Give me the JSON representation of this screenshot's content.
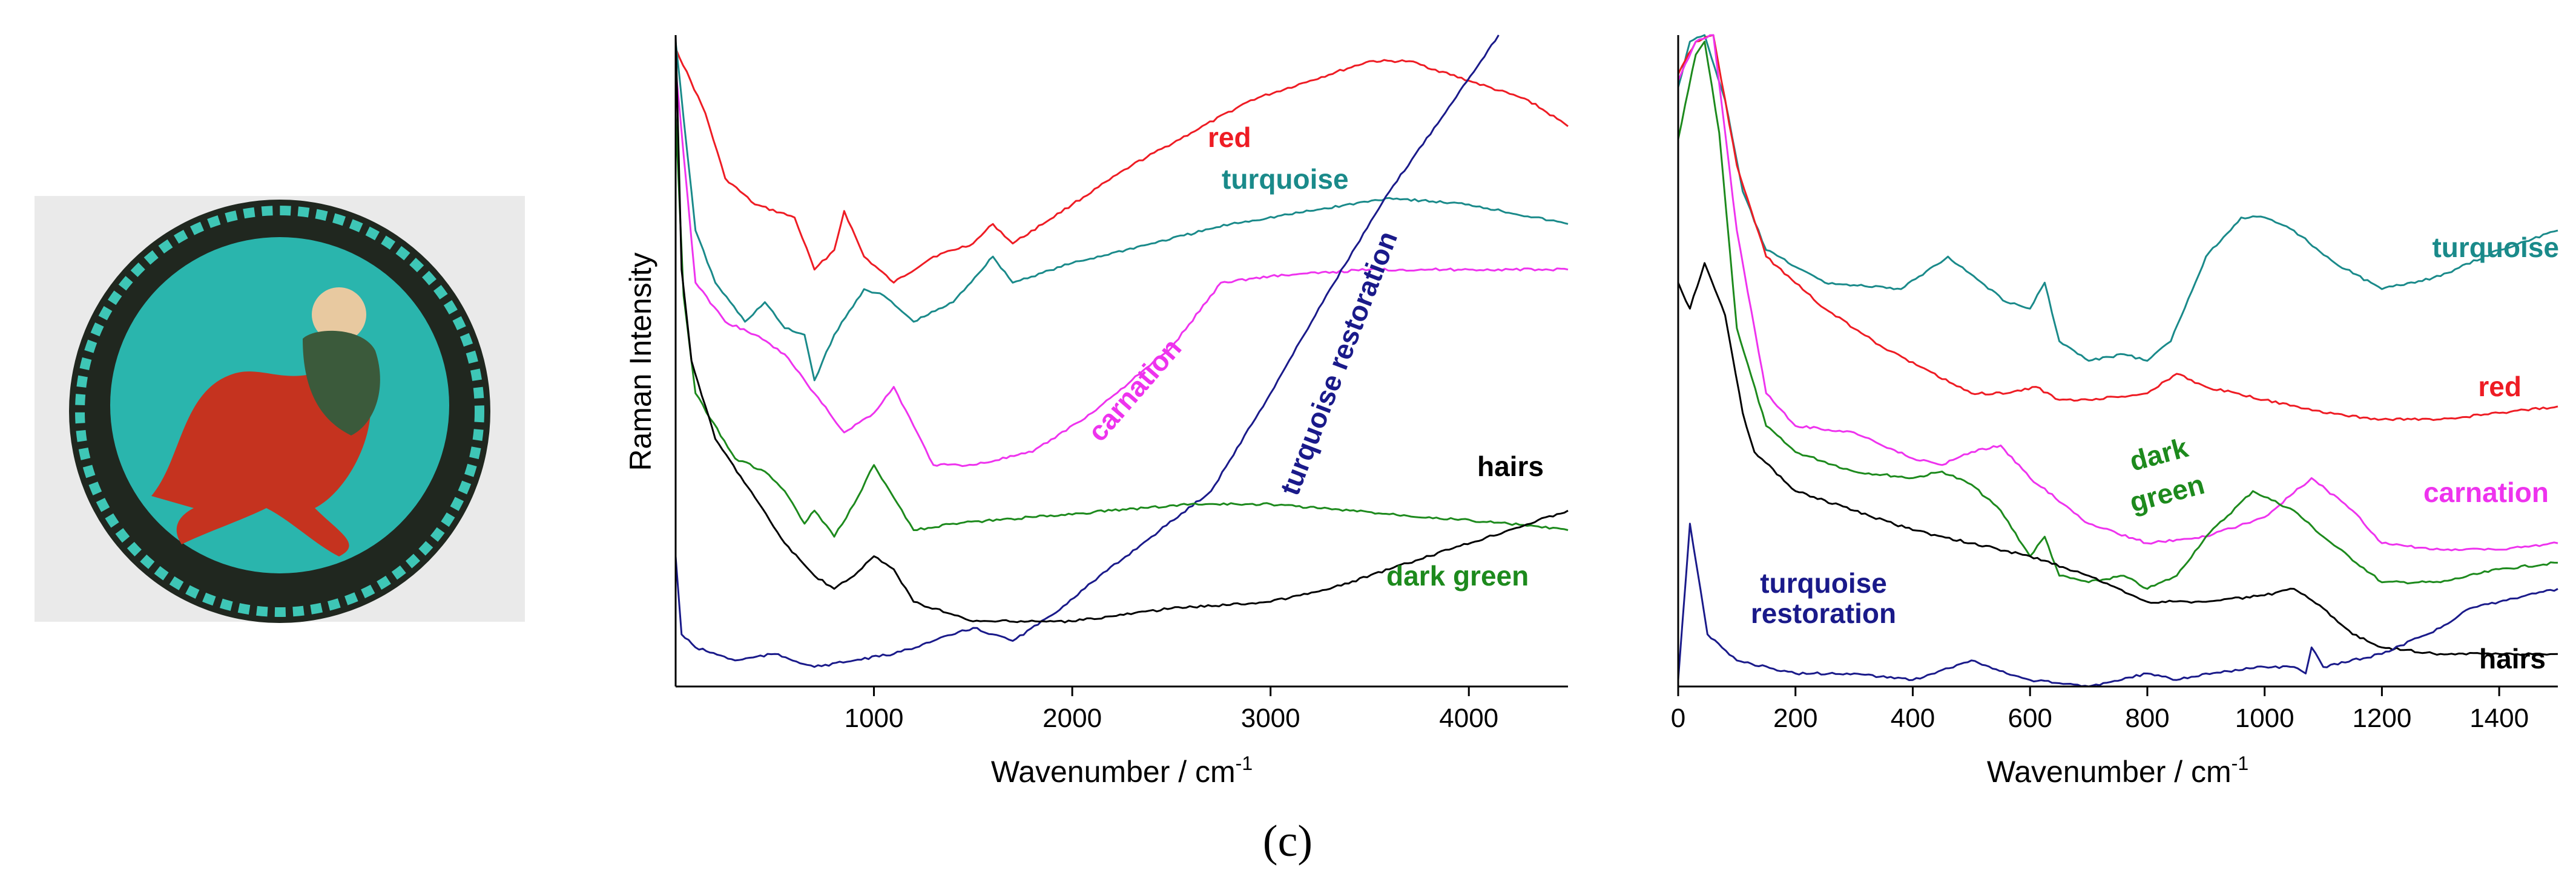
{
  "panel_letter": "(c)",
  "photo": {
    "description_icon": "bowl-photo"
  },
  "chart_data": [
    {
      "type": "line",
      "title": "",
      "xlabel": "Wavenumber / cm-1",
      "xlabel_main": "Wavenumber / cm",
      "xlabel_sup": "-1",
      "ylabel": "Raman Intensity",
      "xlim": [
        0,
        4500
      ],
      "ylim": [
        0,
        100
      ],
      "xticks": [
        1000,
        2000,
        3000,
        4000
      ],
      "xtick_labels": [
        "1000",
        "2000",
        "3000",
        "4000"
      ],
      "series": [
        {
          "name": "red",
          "color": "#ee1c24",
          "x": [
            0,
            150,
            250,
            400,
            600,
            700,
            800,
            850,
            950,
            1100,
            1300,
            1500,
            1600,
            1700,
            2000,
            2300,
            2600,
            2900,
            3200,
            3500,
            3700,
            4000,
            4300,
            4500
          ],
          "y": [
            98,
            88,
            78,
            74,
            72,
            64,
            67,
            73,
            66,
            62,
            66,
            68,
            71,
            68,
            74,
            80,
            85,
            90,
            93,
            96,
            96,
            93,
            90,
            86
          ]
        },
        {
          "name": "turquoise",
          "color": "#1a8a8a",
          "x": [
            0,
            100,
            200,
            350,
            450,
            550,
            650,
            700,
            800,
            950,
            1050,
            1200,
            1400,
            1600,
            1700,
            2000,
            2400,
            2800,
            3200,
            3600,
            4000,
            4500
          ],
          "y": [
            99,
            70,
            62,
            56,
            59,
            55,
            54,
            47,
            54,
            61,
            60,
            56,
            59,
            66,
            62,
            65,
            68,
            71,
            73,
            75,
            74,
            71
          ]
        },
        {
          "name": "carnation",
          "color": "#ee33ee",
          "x": [
            0,
            100,
            250,
            400,
            550,
            700,
            850,
            1000,
            1100,
            1200,
            1300,
            1500,
            1800,
            2100,
            2500,
            2750,
            3000,
            3500,
            4000,
            4500
          ],
          "y": [
            95,
            62,
            56,
            54,
            51,
            45,
            39,
            42,
            46,
            40,
            34,
            34,
            36,
            42,
            52,
            62,
            63,
            64,
            64,
            64
          ]
        },
        {
          "name": "turquoise restoration",
          "color": "#1a1a8a",
          "x": [
            0,
            30,
            100,
            300,
            500,
            700,
            900,
            1100,
            1300,
            1500,
            1600,
            1700,
            1900,
            2100,
            2400,
            2700,
            3000,
            3300,
            3600,
            3900,
            4150
          ],
          "y": [
            20,
            8,
            6,
            4,
            5,
            3,
            4,
            5,
            7,
            9,
            8,
            7,
            11,
            16,
            23,
            30,
            45,
            61,
            76,
            89,
            100
          ]
        },
        {
          "name": "dark green",
          "color": "#1d8a1d",
          "x": [
            0,
            40,
            100,
            300,
            450,
            550,
            650,
            700,
            800,
            900,
            1000,
            1100,
            1200,
            1400,
            1800,
            2200,
            2600,
            3000,
            3400,
            3800,
            4200,
            4500
          ],
          "y": [
            88,
            60,
            45,
            35,
            33,
            30,
            25,
            27,
            23,
            28,
            34,
            29,
            24,
            25,
            26,
            27,
            28,
            28,
            27,
            26,
            25,
            24
          ]
        },
        {
          "name": "hairs",
          "color": "#000000",
          "x": [
            0,
            30,
            80,
            200,
            400,
            550,
            700,
            800,
            900,
            1000,
            1100,
            1200,
            1500,
            2000,
            2500,
            3000,
            3300,
            3600,
            3900,
            4200,
            4500
          ],
          "y": [
            100,
            64,
            50,
            38,
            29,
            22,
            17,
            15,
            17,
            20,
            18,
            13,
            10,
            10,
            12,
            13,
            15,
            18,
            21,
            24,
            27
          ]
        }
      ]
    },
    {
      "type": "line",
      "title": "",
      "xlabel": "Wavenumber / cm-1",
      "xlabel_main": "Wavenumber / cm",
      "xlabel_sup": "-1",
      "ylabel": "",
      "xlim": [
        0,
        1500
      ],
      "ylim": [
        0,
        100
      ],
      "xticks": [
        0,
        200,
        400,
        600,
        800,
        1000,
        1200,
        1400
      ],
      "xtick_labels": [
        "0",
        "200",
        "400",
        "600",
        "800",
        "1000",
        "1200",
        "1400"
      ],
      "series": [
        {
          "name": "turquoise",
          "color": "#1a8a8a",
          "x": [
            0,
            20,
            45,
            80,
            110,
            150,
            250,
            380,
            460,
            560,
            600,
            625,
            650,
            700,
            760,
            800,
            840,
            900,
            960,
            1000,
            1050,
            1120,
            1200,
            1300,
            1400,
            1500
          ],
          "y": [
            92,
            99,
            100,
            90,
            76,
            67,
            62,
            61,
            66,
            59,
            58,
            62,
            53,
            50,
            51,
            50,
            53,
            66,
            72,
            72,
            70,
            65,
            61,
            63,
            67,
            70
          ]
        },
        {
          "name": "red",
          "color": "#ee1c24",
          "x": [
            0,
            30,
            60,
            100,
            150,
            250,
            350,
            500,
            560,
            610,
            650,
            700,
            800,
            850,
            900,
            1000,
            1100,
            1200,
            1300,
            1400,
            1500
          ],
          "y": [
            94,
            99,
            100,
            80,
            66,
            58,
            52,
            45,
            45,
            46,
            44,
            44,
            45,
            48,
            46,
            44,
            42,
            41,
            41,
            42,
            43
          ]
        },
        {
          "name": "carnation",
          "color": "#ee33ee",
          "x": [
            0,
            30,
            60,
            100,
            150,
            200,
            300,
            400,
            450,
            500,
            550,
            600,
            700,
            800,
            900,
            1000,
            1080,
            1150,
            1200,
            1300,
            1400,
            1500
          ],
          "y": [
            93,
            99,
            100,
            70,
            45,
            40,
            39,
            35,
            34,
            36,
            37,
            32,
            25,
            22,
            23,
            26,
            32,
            27,
            22,
            21,
            21,
            22
          ]
        },
        {
          "name": "dark green",
          "color": "#1d8a1d",
          "x": [
            0,
            30,
            45,
            70,
            100,
            150,
            200,
            300,
            400,
            450,
            500,
            550,
            600,
            625,
            650,
            700,
            760,
            800,
            850,
            900,
            980,
            1050,
            1100,
            1200,
            1300,
            1400,
            1500
          ],
          "y": [
            84,
            97,
            99,
            85,
            55,
            40,
            36,
            33,
            32,
            33,
            31,
            27,
            20,
            23,
            17,
            16,
            17,
            15,
            17,
            23,
            30,
            27,
            23,
            16,
            16,
            18,
            19
          ]
        },
        {
          "name": "hairs",
          "color": "#000000",
          "x": [
            0,
            20,
            45,
            80,
            110,
            130,
            200,
            300,
            400,
            500,
            600,
            700,
            800,
            900,
            1000,
            1050,
            1100,
            1150,
            1200,
            1300,
            1400,
            1500
          ],
          "y": [
            62,
            58,
            65,
            57,
            42,
            36,
            30,
            27,
            24,
            22,
            20,
            17,
            13,
            13,
            14,
            15,
            12,
            8,
            6,
            5,
            5,
            5
          ]
        },
        {
          "name": "turquoise restoration",
          "color": "#1a1a8a",
          "x": [
            0,
            20,
            50,
            100,
            200,
            300,
            400,
            500,
            560,
            600,
            700,
            800,
            850,
            900,
            1000,
            1050,
            1070,
            1080,
            1100,
            1200,
            1300,
            1350,
            1400,
            1500
          ],
          "y": [
            1,
            25,
            8,
            4,
            2,
            2,
            1,
            4,
            2,
            1,
            0,
            2,
            1,
            2,
            3,
            3,
            2,
            6,
            3,
            5,
            9,
            12,
            13,
            15
          ]
        }
      ]
    }
  ],
  "labels": {
    "left": {
      "red": "red",
      "turquoise": "turquoise",
      "carnation": "carnation",
      "turquoise_restoration": "turquoise restoration",
      "hairs": "hairs",
      "dark_green": "dark green"
    },
    "right": {
      "turquoise": "turquoise",
      "red": "red",
      "carnation": "carnation",
      "dark": "dark",
      "green": "green",
      "turquoise_restoration_1": "turquoise",
      "turquoise_restoration_2": "restoration",
      "hairs": "hairs"
    }
  }
}
